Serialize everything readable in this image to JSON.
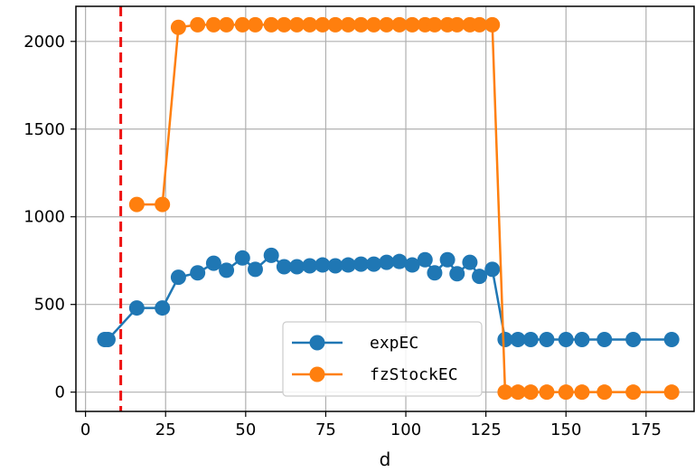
{
  "chart_data": {
    "type": "line",
    "xlabel": "d",
    "ylabel": "",
    "title": "",
    "xlim": [
      -3,
      190
    ],
    "ylim": [
      -110,
      2200
    ],
    "xticks": [
      0,
      25,
      50,
      75,
      100,
      125,
      150,
      175
    ],
    "yticks": [
      0,
      500,
      1000,
      1500,
      2000
    ],
    "grid": true,
    "legend": "lower-right",
    "vline": {
      "x": 11,
      "color": "#ee1111",
      "style": "dashed"
    },
    "series": [
      {
        "name": "expEC",
        "color": "#1f77b4",
        "x": [
          6,
          7,
          16,
          24,
          29,
          35,
          40,
          44,
          49,
          53,
          58,
          62,
          66,
          70,
          74,
          78,
          82,
          86,
          90,
          94,
          98,
          102,
          106,
          109,
          113,
          116,
          120,
          123,
          127,
          131,
          135,
          139,
          144,
          150,
          155,
          162,
          171,
          183
        ],
        "y": [
          300,
          300,
          480,
          480,
          655,
          680,
          735,
          695,
          765,
          700,
          780,
          715,
          715,
          720,
          725,
          720,
          725,
          730,
          730,
          740,
          745,
          725,
          755,
          680,
          755,
          675,
          740,
          660,
          700,
          300,
          300,
          300,
          300,
          300,
          300,
          300,
          300,
          300
        ]
      },
      {
        "name": "fzStockEC",
        "color": "#ff7f0e",
        "x": [
          16,
          24,
          29,
          35,
          40,
          44,
          49,
          53,
          58,
          62,
          66,
          70,
          74,
          78,
          82,
          86,
          90,
          94,
          98,
          102,
          106,
          109,
          113,
          116,
          120,
          123,
          127,
          131,
          135,
          139,
          144,
          150,
          155,
          162,
          171,
          183
        ],
        "y": [
          1070,
          1070,
          2080,
          2095,
          2095,
          2095,
          2095,
          2095,
          2095,
          2095,
          2095,
          2095,
          2095,
          2095,
          2095,
          2095,
          2095,
          2095,
          2095,
          2095,
          2095,
          2095,
          2095,
          2095,
          2095,
          2095,
          2095,
          0,
          0,
          0,
          0,
          0,
          0,
          0,
          0,
          0
        ]
      }
    ]
  }
}
